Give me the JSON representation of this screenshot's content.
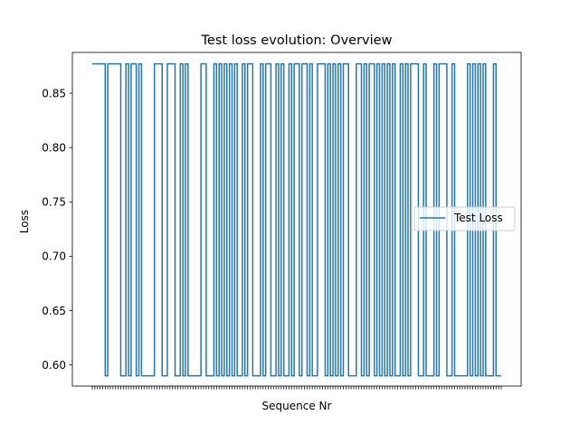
{
  "chart_data": {
    "type": "line",
    "title": "Test loss evolution: Overview",
    "xlabel": "Sequence Nr",
    "ylabel": "Loss",
    "ylim": [
      0.5805,
      0.8875
    ],
    "yticks": [
      "0.60",
      "0.65",
      "0.70",
      "0.75",
      "0.80",
      "0.85"
    ],
    "xtick_labels_visible": false,
    "legend_location": "center right",
    "grid": false,
    "line_color": "#1f77b4",
    "series": [
      {
        "name": "Test Loss",
        "values": [
          0.877,
          0.877,
          0.877,
          0.877,
          0.877,
          0.59,
          0.877,
          0.877,
          0.877,
          0.877,
          0.877,
          0.59,
          0.59,
          0.877,
          0.59,
          0.877,
          0.877,
          0.59,
          0.877,
          0.59,
          0.59,
          0.59,
          0.59,
          0.59,
          0.877,
          0.877,
          0.877,
          0.59,
          0.59,
          0.877,
          0.877,
          0.877,
          0.59,
          0.59,
          0.877,
          0.59,
          0.877,
          0.59,
          0.59,
          0.59,
          0.59,
          0.59,
          0.877,
          0.877,
          0.59,
          0.59,
          0.59,
          0.877,
          0.59,
          0.877,
          0.59,
          0.877,
          0.59,
          0.877,
          0.59,
          0.877,
          0.59,
          0.59,
          0.877,
          0.59,
          0.877,
          0.877,
          0.59,
          0.59,
          0.59,
          0.877,
          0.59,
          0.877,
          0.877,
          0.59,
          0.59,
          0.877,
          0.59,
          0.877,
          0.59,
          0.59,
          0.877,
          0.59,
          0.877,
          0.877,
          0.59,
          0.877,
          0.877,
          0.59,
          0.877,
          0.59,
          0.59,
          0.877,
          0.877,
          0.877,
          0.59,
          0.877,
          0.59,
          0.877,
          0.59,
          0.877,
          0.59,
          0.877,
          0.877,
          0.59,
          0.59,
          0.59,
          0.877,
          0.877,
          0.59,
          0.877,
          0.59,
          0.877,
          0.877,
          0.59,
          0.877,
          0.59,
          0.877,
          0.59,
          0.877,
          0.59,
          0.877,
          0.59,
          0.59,
          0.877,
          0.59,
          0.877,
          0.59,
          0.877,
          0.877,
          0.877,
          0.59,
          0.59,
          0.877,
          0.59,
          0.59,
          0.59,
          0.877,
          0.59,
          0.877,
          0.877,
          0.877,
          0.59,
          0.59,
          0.877,
          0.59,
          0.59,
          0.59,
          0.59,
          0.59,
          0.877,
          0.59,
          0.877,
          0.59,
          0.877,
          0.59,
          0.877,
          0.59,
          0.59,
          0.59,
          0.877,
          0.59,
          0.59,
          0.59
        ]
      }
    ]
  }
}
